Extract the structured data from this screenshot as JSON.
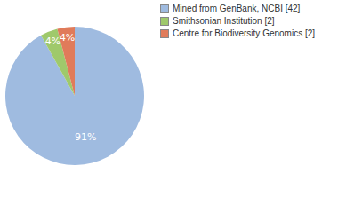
{
  "chart_data": {
    "type": "pie",
    "categories": [
      "Mined from GenBank, NCBI [42]",
      "Smithsonian Institution [2]",
      "Centre for Biodiversity Genomics [2]"
    ],
    "values": [
      91,
      4,
      4
    ],
    "value_labels": [
      "91%",
      "4%",
      "4%"
    ],
    "colors": [
      "#9fbbe0",
      "#9fc96b",
      "#e07b5a"
    ],
    "data_labels": true,
    "legend": "top-right"
  }
}
